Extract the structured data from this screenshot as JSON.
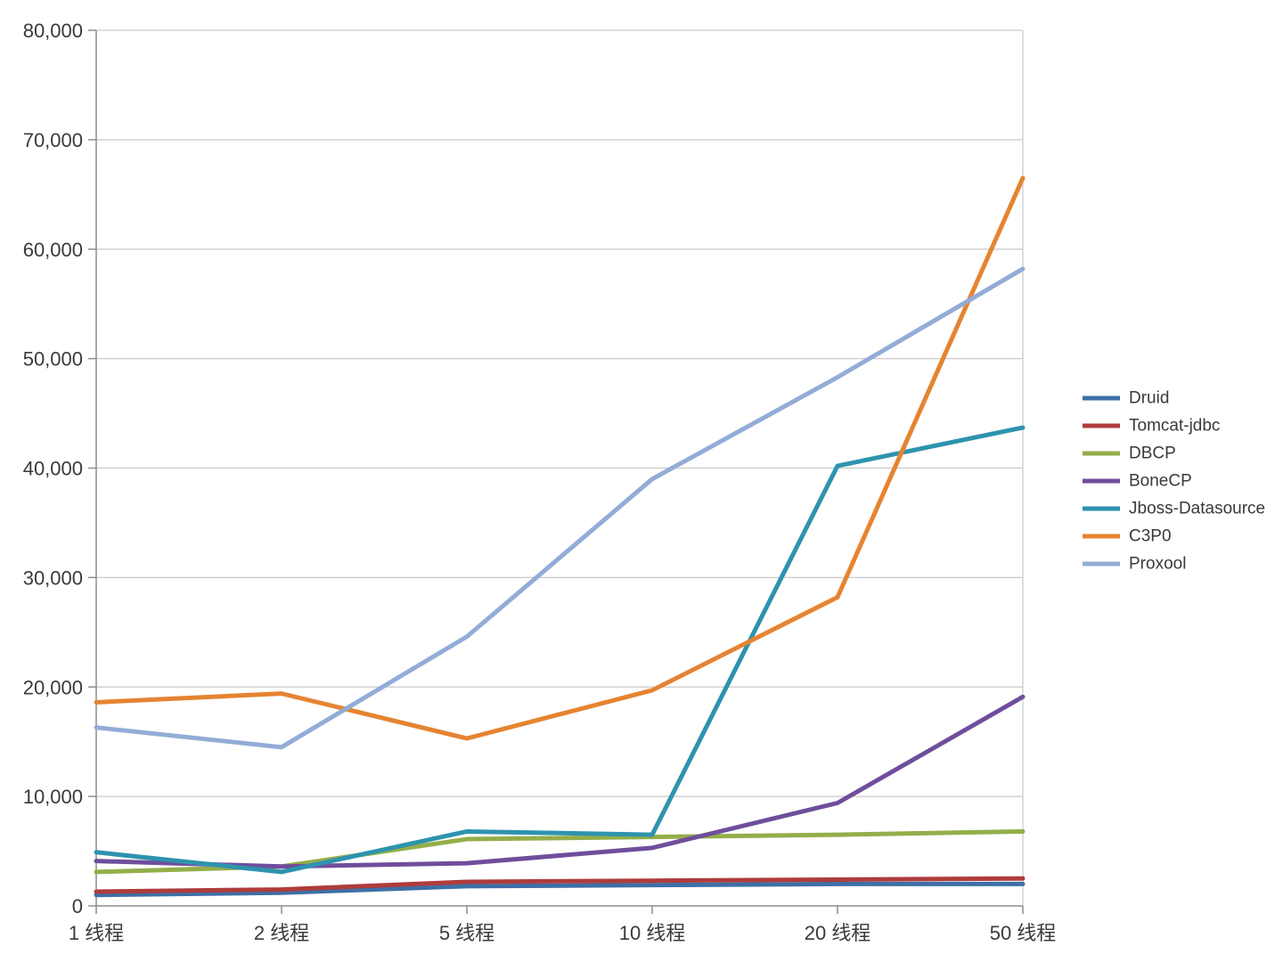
{
  "chart_data": {
    "type": "line",
    "title": "",
    "xlabel": "",
    "ylabel": "",
    "categories": [
      "1 线程",
      "2 线程",
      "5 线程",
      "10 线程",
      "20 线程",
      "50 线程"
    ],
    "series": [
      {
        "name": "Druid",
        "color": "#3E6FA6",
        "values": [
          1000,
          1200,
          1800,
          1900,
          2000,
          2000
        ]
      },
      {
        "name": "Tomcat-jdbc",
        "color": "#AF3C3C",
        "values": [
          1300,
          1500,
          2200,
          2300,
          2400,
          2500
        ]
      },
      {
        "name": "DBCP",
        "color": "#94AE4A",
        "values": [
          3100,
          3600,
          6100,
          6300,
          6500,
          6800
        ]
      },
      {
        "name": "BoneCP",
        "color": "#6F4E9C",
        "values": [
          4100,
          3600,
          3900,
          5300,
          9400,
          19100
        ]
      },
      {
        "name": "Jboss-Datasource",
        "color": "#2E93AE",
        "values": [
          4900,
          3100,
          6800,
          6500,
          40200,
          43700
        ]
      },
      {
        "name": "C3P0",
        "color": "#E58432",
        "values": [
          18600,
          19400,
          15300,
          19700,
          28200,
          66500
        ]
      },
      {
        "name": "Proxool",
        "color": "#93ACD7",
        "values": [
          16300,
          14500,
          24600,
          39000,
          48300,
          58200
        ]
      }
    ],
    "ylim": [
      0,
      80000
    ],
    "ytick_step": 10000,
    "ytick_labels": [
      "0",
      "10,000",
      "20,000",
      "30,000",
      "40,000",
      "50,000",
      "60,000",
      "70,000",
      "80,000"
    ],
    "grid": "horizontal",
    "legend_position": "right"
  },
  "colors": {
    "background": "#FFFFFF",
    "gridline": "#C9C9C9",
    "axis": "#8E8E8E",
    "text": "#3A3A3A"
  }
}
